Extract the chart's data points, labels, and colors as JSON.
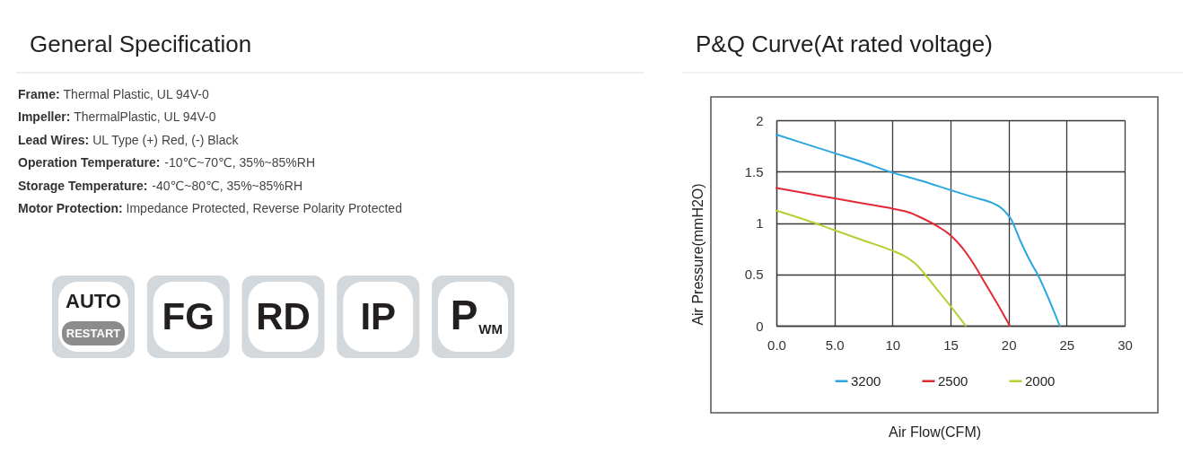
{
  "chart_data": [
    {
      "type": "other",
      "title": "General Specification",
      "annotations": [
        "Frame: Thermal Plastic, UL 94V-0",
        "Impeller: ThermalPlastic, UL 94V-0",
        "Lead Wires: UL Type (+) Red, (-) Black",
        "Operation Temperature: -10℃~70℃, 35%~85%RH",
        "Storage Temperature: -40℃~80℃, 35%~85%RH",
        "Motor Protection: Impedance Protected, Reverse Polarity Protected"
      ],
      "categories": [
        "AUTO\nRESTART",
        "FG",
        "RD",
        "IP",
        "P$_{WM}$"
      ]
    },
    {
      "type": "line",
      "title": "P&Q Curve(At rated voltage)",
      "xlabel": "Air Flow(CFM)",
      "ylabel": "Air Pressure(mmH2O)",
      "xlim": [
        0,
        30
      ],
      "ylim": [
        0,
        2
      ],
      "xticks": [
        {
          "value": 0,
          "label": "0.0"
        },
        {
          "value": 5,
          "label": "5.0"
        },
        10,
        15,
        20,
        25,
        30
      ],
      "yticks": [
        0,
        0.5,
        1,
        1.5,
        2
      ],
      "grid": true,
      "legend": "bottom",
      "line_style": "solid",
      "series": [
        {
          "name": "3200",
          "color": "#2aa7df",
          "x": [
            0,
            2.5,
            5,
            7.5,
            10,
            12.5,
            15,
            17,
            18.5,
            19.2,
            19.7,
            20.2,
            21,
            22,
            22.5,
            23.5,
            24.4
          ],
          "values": [
            1.86,
            1.77,
            1.68,
            1.59,
            1.49,
            1.41,
            1.32,
            1.25,
            1.2,
            1.16,
            1.11,
            1.04,
            0.83,
            0.6,
            0.5,
            0.25,
            0
          ]
        },
        {
          "name": "2500",
          "color": "#e12a35",
          "x": [
            0,
            2.5,
            5,
            7.5,
            10,
            11.5,
            12.5,
            14,
            15,
            16,
            17,
            18,
            19,
            20.1
          ],
          "values": [
            1.34,
            1.29,
            1.24,
            1.19,
            1.14,
            1.1,
            1.05,
            0.96,
            0.88,
            0.76,
            0.6,
            0.41,
            0.22,
            0
          ]
        },
        {
          "name": "2000",
          "color": "#b6cf32",
          "x": [
            0,
            2.5,
            5,
            7.5,
            10,
            11,
            12,
            12.8,
            14,
            15,
            16.3
          ],
          "values": [
            1.12,
            1.03,
            0.93,
            0.83,
            0.73,
            0.68,
            0.6,
            0.5,
            0.33,
            0.19,
            0
          ]
        }
      ]
    }
  ]
}
